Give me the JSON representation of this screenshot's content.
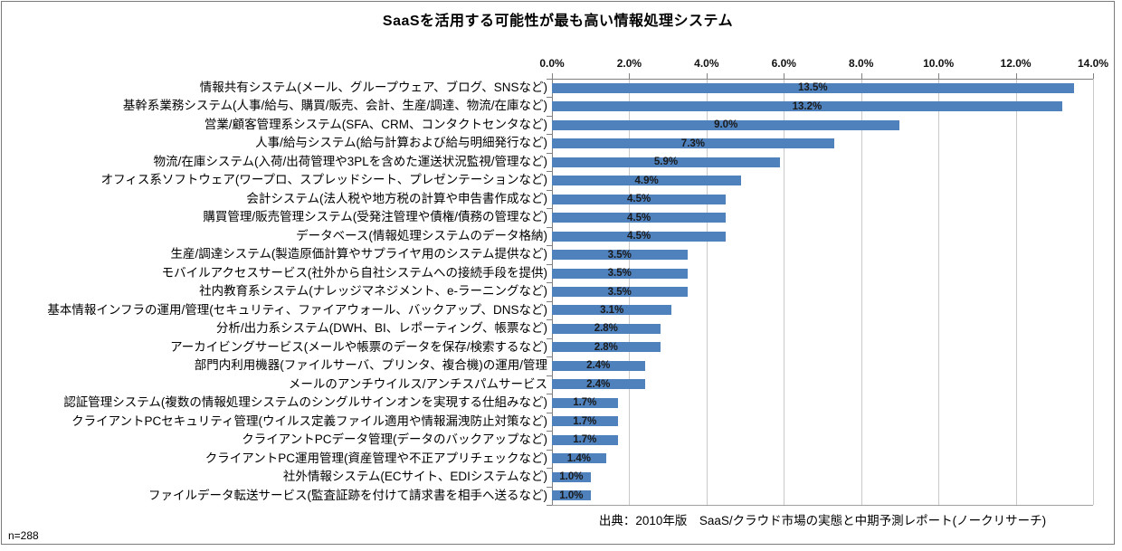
{
  "page": {
    "title": "SaaSを活用する可能性が最も高い情報処理システム",
    "source_note": "出典：2010年版　SaaS/クラウド市場の実態と中期予測レポート(ノークリサーチ)",
    "sample_size": "n=288"
  },
  "chart_data": {
    "type": "bar",
    "orientation": "horizontal",
    "title": "SaaSを活用する可能性が最も高い情報処理システム",
    "categories": [
      "情報共有システム(メール、グループウェア、ブログ、SNSなど)",
      "基幹系業務システム(人事/給与、購買/販売、会計、生産/調達、物流/在庫など)",
      "営業/顧客管理系システム(SFA、CRM、コンタクトセンタなど)",
      "人事/給与システム(給与計算および給与明細発行など)",
      "物流/在庫システム(入荷/出荷管理や3PLを含めた運送状況監視/管理など)",
      "オフィス系ソフトウェア(ワープロ、スプレッドシート、プレゼンテーションなど)",
      "会計システム(法人税や地方税の計算や申告書作成など)",
      "購買管理/販売管理システム(受発注管理や債権/債務の管理など)",
      "データベース(情報処理システムのデータ格納)",
      "生産/調達システム(製造原価計算やサプライヤ用のシステム提供など)",
      "モバイルアクセスサービス(社外から自社システムへの接続手段を提供)",
      "社内教育系システム(ナレッジマネジメント、e-ラーニングなど)",
      "基本情報インフラの運用/管理(セキュリティ、ファイアウォール、バックアップ、DNSなど)",
      "分析/出力系システム(DWH、BI、レポーティング、帳票など)",
      "アーカイビングサービス(メールや帳票のデータを保存/検索するなど)",
      "部門内利用機器(ファイルサーバ、プリンタ、複合機)の運用/管理",
      "メールのアンチウイルス/アンチスパムサービス",
      "認証管理システム(複数の情報処理システムのシングルサインオンを実現する仕組みなど)",
      "クライアントPCセキュリティ管理(ウイルス定義ファイル適用や情報漏洩防止対策など)",
      "クライアントPCデータ管理(データのバックアップなど)",
      "クライアントPC運用管理(資産管理や不正アプリチェックなど)",
      "社外情報システム(ECサイト、EDIシステムなど)",
      "ファイルデータ転送サービス(監査証跡を付けて請求書を相手へ送るなど)"
    ],
    "values": [
      13.5,
      13.2,
      9.0,
      7.3,
      5.9,
      4.9,
      4.5,
      4.5,
      4.5,
      3.5,
      3.5,
      3.5,
      3.1,
      2.8,
      2.8,
      2.4,
      2.4,
      1.7,
      1.7,
      1.7,
      1.4,
      1.0,
      1.0
    ],
    "value_labels": [
      "13.5%",
      "13.2%",
      "9.0%",
      "7.3%",
      "5.9%",
      "4.9%",
      "4.5%",
      "4.5%",
      "4.5%",
      "3.5%",
      "3.5%",
      "3.5%",
      "3.1%",
      "2.8%",
      "2.8%",
      "2.4%",
      "2.4%",
      "1.7%",
      "1.7%",
      "1.7%",
      "1.4%",
      "1.0%",
      "1.0%"
    ],
    "x_tick_labels": [
      "0.0%",
      "2.0%",
      "4.0%",
      "6.0%",
      "8.0%",
      "10.0%",
      "12.0%",
      "14.0%"
    ],
    "x_tick_values": [
      0,
      2,
      4,
      6,
      8,
      10,
      12,
      14
    ],
    "xlim": [
      0,
      14
    ],
    "xlabel": "",
    "ylabel": "",
    "grid": true,
    "axis_position": "top",
    "legend": "none",
    "bar_color": "#4f81bd",
    "gridline_color": "#c9c9c9",
    "axis_line_color": "#808080",
    "source": "出典：2010年版　SaaS/クラウド市場の実態と中期予測レポート(ノークリサーチ)",
    "sample_size": "n=288"
  }
}
